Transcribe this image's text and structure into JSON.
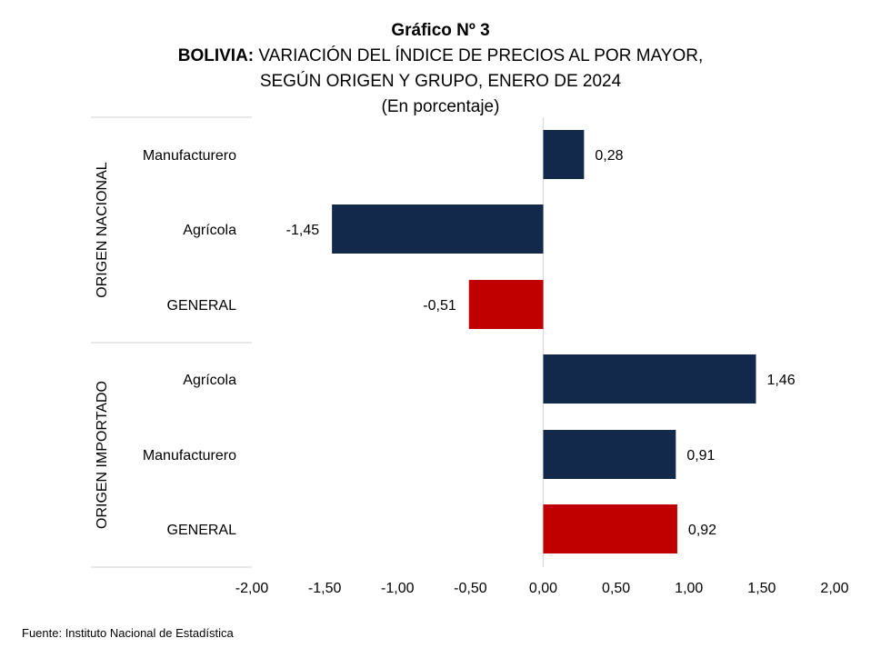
{
  "title": {
    "line1": "Gráfico Nº 3",
    "line2_bold": "BOLIVIA:",
    "line2_rest": " VARIACIÓN DEL ÍNDICE DE PRECIOS AL POR MAYOR,",
    "line3": "SEGÚN ORIGEN Y GRUPO, ENERO DE 2024",
    "line4": "(En porcentaje)"
  },
  "source": "Fuente: Instituto Nacional de Estadística",
  "colors": {
    "group_bar": "#13294b",
    "general_bar": "#c00000",
    "gridline": "#d9d9d9",
    "zero_line": "#d9d9d9"
  },
  "chart_data": {
    "type": "bar",
    "orientation": "horizontal",
    "xlim": [
      -2.0,
      2.0
    ],
    "x_ticks": [
      "-2,00",
      "-1,50",
      "-1,00",
      "-0,50",
      "0,00",
      "0,50",
      "1,00",
      "1,50",
      "2,00"
    ],
    "x_tick_values": [
      -2.0,
      -1.5,
      -1.0,
      -0.5,
      0.0,
      0.5,
      1.0,
      1.5,
      2.0
    ],
    "groups": [
      {
        "name": "ORIGEN NACIONAL",
        "items": [
          {
            "category": "Manufacturero",
            "value": 0.28,
            "label": "0,28",
            "kind": "group"
          },
          {
            "category": "Agrícola",
            "value": -1.45,
            "label": "-1,45",
            "kind": "group"
          },
          {
            "category": "GENERAL",
            "value": -0.51,
            "label": "-0,51",
            "kind": "general"
          }
        ]
      },
      {
        "name": "ORIGEN IMPORTADO",
        "items": [
          {
            "category": "Agrícola",
            "value": 1.46,
            "label": "1,46",
            "kind": "group"
          },
          {
            "category": "Manufacturero",
            "value": 0.91,
            "label": "0,91",
            "kind": "group"
          },
          {
            "category": "GENERAL",
            "value": 0.92,
            "label": "0,92",
            "kind": "general"
          }
        ]
      }
    ]
  }
}
